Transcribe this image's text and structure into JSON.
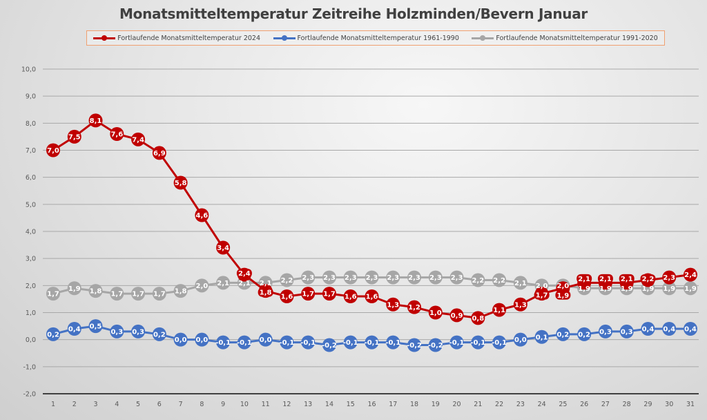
{
  "chart_data": {
    "type": "line",
    "title": "Monatsmitteltemperatur Zeitreihe Holzminden/Bevern Januar",
    "xlabel": "",
    "ylabel": "",
    "x": [
      1,
      2,
      3,
      4,
      5,
      6,
      7,
      8,
      9,
      10,
      11,
      12,
      13,
      14,
      15,
      16,
      17,
      18,
      19,
      20,
      21,
      22,
      23,
      24,
      25,
      26,
      27,
      28,
      29,
      30,
      31
    ],
    "ylim": [
      -2,
      10
    ],
    "yticks": [
      "-2,0",
      "-1,0",
      "0,0",
      "1,0",
      "2,0",
      "3,0",
      "4,0",
      "5,0",
      "6,0",
      "7,0",
      "8,0",
      "9,0",
      "10,0"
    ],
    "ytick_values": [
      -2,
      -1,
      0,
      1,
      2,
      3,
      4,
      5,
      6,
      7,
      8,
      9,
      10
    ],
    "grid": true,
    "legend_position": "top",
    "series": [
      {
        "name": "Fortlaufende Monatsmitteltemperatur 1991-2020",
        "color": "#a6a6a6",
        "values": [
          1.7,
          1.9,
          1.8,
          1.7,
          1.7,
          1.7,
          1.8,
          2.0,
          2.1,
          2.1,
          2.1,
          2.2,
          2.3,
          2.3,
          2.3,
          2.3,
          2.3,
          2.3,
          2.3,
          2.3,
          2.2,
          2.2,
          2.1,
          2.0,
          2.0,
          1.9,
          1.9,
          1.9,
          1.9,
          1.9,
          1.9
        ]
      },
      {
        "name": "Fortlaufende Monatsmitteltemperatur 1961-1990",
        "color": "#4472c4",
        "values": [
          0.2,
          0.4,
          0.5,
          0.3,
          0.3,
          0.2,
          0.0,
          0.0,
          -0.1,
          -0.1,
          0.0,
          -0.1,
          -0.1,
          -0.2,
          -0.1,
          -0.1,
          -0.1,
          -0.2,
          -0.2,
          -0.1,
          -0.1,
          -0.1,
          0.0,
          0.1,
          0.2,
          0.2,
          0.3,
          0.3,
          0.4,
          0.4,
          0.4
        ]
      },
      {
        "name": "Fortlaufende Monatsmitteltemperatur 2024",
        "color": "#c00000",
        "values": [
          7.0,
          7.5,
          8.1,
          7.6,
          7.4,
          6.9,
          5.8,
          4.6,
          3.4,
          2.4,
          1.8,
          1.6,
          1.7,
          1.7,
          1.6,
          1.6,
          1.3,
          1.2,
          1.0,
          0.9,
          0.8,
          1.1,
          1.3,
          1.7,
          1.9,
          2.1,
          2.1,
          2.1,
          2.2,
          2.3,
          2.4
        ]
      }
    ]
  },
  "legend": [
    {
      "label": "Fortlaufende Monatsmitteltemperatur 2024",
      "color": "#c00000"
    },
    {
      "label": "Fortlaufende Monatsmitteltemperatur 1961-1990",
      "color": "#4472c4"
    },
    {
      "label": "Fortlaufende Monatsmitteltemperatur 1991-2020",
      "color": "#a6a6a6"
    }
  ]
}
